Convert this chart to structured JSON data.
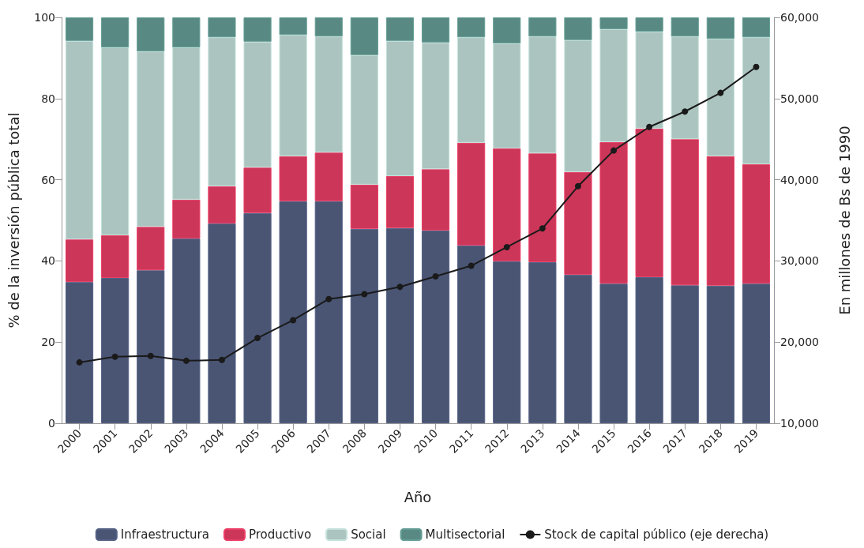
{
  "chart_data": {
    "type": "bar",
    "stacked": true,
    "xlabel": "Año",
    "ylabel": "% de la inversión pública total",
    "y2label": "En millones de Bs de 1990",
    "categories": [
      "2000",
      "2001",
      "2002",
      "2003",
      "2004",
      "2005",
      "2006",
      "2007",
      "2008",
      "2009",
      "2010",
      "2011",
      "2012",
      "2013",
      "2014",
      "2015",
      "2016",
      "2017",
      "2018",
      "2019"
    ],
    "series": [
      {
        "name": "Infraestructura",
        "color": "#4a5574",
        "values": [
          34.8,
          35.8,
          37.7,
          45.5,
          49.2,
          51.8,
          54.7,
          54.7,
          47.9,
          48.1,
          47.5,
          43.8,
          39.9,
          39.7,
          36.6,
          34.4,
          36.0,
          34.0,
          33.9,
          34.4
        ]
      },
      {
        "name": "Productivo",
        "color": "#cc3659",
        "values": [
          10.5,
          10.5,
          10.7,
          9.6,
          9.2,
          11.2,
          11.1,
          12.0,
          10.9,
          12.8,
          15.1,
          25.3,
          27.8,
          26.8,
          25.3,
          34.9,
          36.6,
          36.0,
          31.9,
          29.4
        ]
      },
      {
        "name": "Social",
        "color": "#abc4bf",
        "values": [
          48.9,
          46.3,
          43.2,
          37.5,
          36.7,
          31.0,
          29.9,
          28.6,
          31.9,
          33.3,
          31.2,
          26.0,
          25.9,
          28.8,
          32.5,
          27.8,
          23.9,
          25.3,
          28.9,
          31.3
        ]
      },
      {
        "name": "Multisectorial",
        "color": "#588a83",
        "values": [
          5.8,
          7.4,
          8.4,
          7.4,
          4.9,
          6.0,
          4.3,
          4.7,
          9.3,
          5.8,
          6.2,
          4.9,
          6.4,
          4.7,
          5.6,
          2.9,
          3.5,
          4.7,
          5.3,
          4.9
        ]
      },
      {
        "name": "Stock de capital público (eje derecha)",
        "type": "line",
        "axis": "y2",
        "color": "#1a1a1a",
        "marker": "circle",
        "values": [
          17500,
          18200,
          18300,
          17700,
          17800,
          20500,
          22700,
          25300,
          25900,
          26800,
          28100,
          29400,
          31700,
          34000,
          39200,
          43600,
          46500,
          48400,
          50700,
          53900
        ]
      }
    ],
    "ylim": [
      0,
      100
    ],
    "yticks": [
      0,
      20,
      40,
      60,
      80,
      100
    ],
    "y2lim": [
      10000,
      60000
    ],
    "y2ticks": [
      {
        "value": 10000,
        "label": "10,000"
      },
      {
        "value": 20000,
        "label": "20,000"
      },
      {
        "value": 30000,
        "label": "30,000"
      },
      {
        "value": 40000,
        "label": "40,000"
      },
      {
        "value": 50000,
        "label": "50,000"
      },
      {
        "value": 60000,
        "label": "60,000"
      }
    ],
    "grid": false,
    "legend": "bottom"
  }
}
